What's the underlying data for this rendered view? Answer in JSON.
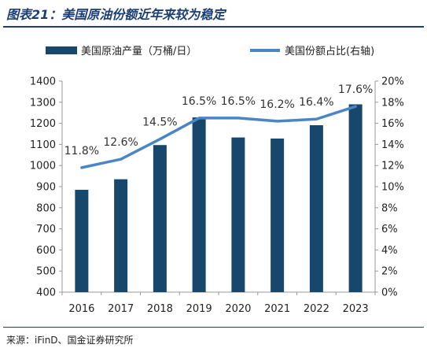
{
  "figure_title": "图表21：美国原油份额近年来较为稳定",
  "source_note": "来源：iFinD、国金证券研究所",
  "colors": {
    "title": "#1b3f73",
    "bar": "#17486b",
    "line": "#4a86c5"
  },
  "chart_data": {
    "type": "bar",
    "categories": [
      "2016",
      "2017",
      "2018",
      "2019",
      "2020",
      "2021",
      "2022",
      "2023"
    ],
    "series": [
      {
        "name": "美国原油产量（万桶/日）",
        "type": "bar",
        "axis": "left",
        "values": [
          885,
          935,
          1097,
          1228,
          1133,
          1128,
          1191,
          1290
        ]
      },
      {
        "name": "美国份额占比(右轴)",
        "type": "line",
        "axis": "right",
        "values": [
          11.8,
          12.6,
          14.5,
          16.5,
          16.5,
          16.2,
          16.4,
          17.6
        ],
        "labels": [
          "11.8%",
          "12.6%",
          "14.5%",
          "16.5%",
          "16.5%",
          "16.2%",
          "16.4%",
          "17.6%"
        ]
      }
    ],
    "y_left": {
      "lim": [
        400,
        1400
      ],
      "ticks": [
        400,
        500,
        600,
        700,
        800,
        900,
        1000,
        1100,
        1200,
        1300,
        1400
      ],
      "tick_labels": [
        "400",
        "500",
        "600",
        "700",
        "800",
        "900",
        "1000",
        "1100",
        "1200",
        "1300",
        "1400"
      ]
    },
    "y_right": {
      "lim": [
        0,
        20
      ],
      "ticks": [
        0,
        2,
        4,
        6,
        8,
        10,
        12,
        14,
        16,
        18,
        20
      ],
      "tick_labels": [
        "0%",
        "2%",
        "4%",
        "6%",
        "8%",
        "10%",
        "12%",
        "14%",
        "16%",
        "18%",
        "20%"
      ]
    },
    "grid": false,
    "legend_position": "top"
  }
}
